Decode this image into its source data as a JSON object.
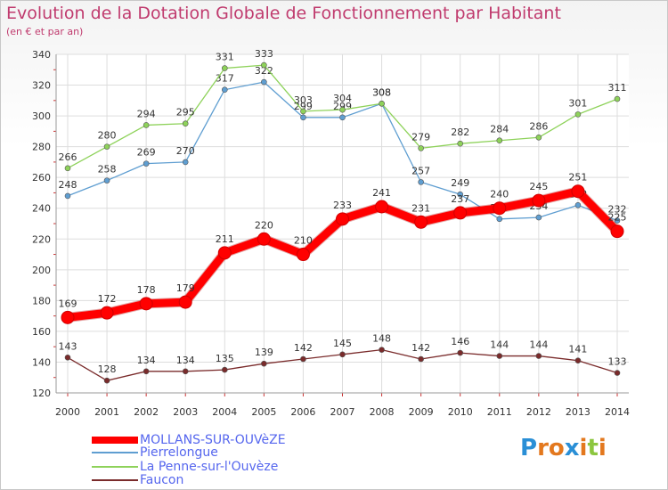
{
  "chart_data": {
    "type": "line",
    "title": "Evolution de la Dotation Globale de Fonctionnement par Habitant",
    "subtitle": "(en € et par an)",
    "x": [
      "2000",
      "2001",
      "2002",
      "2003",
      "2004",
      "2005",
      "2006",
      "2007",
      "2008",
      "2009",
      "2010",
      "2011",
      "2012",
      "2013",
      "2014"
    ],
    "ylim": [
      120,
      340
    ],
    "yticks": [
      120,
      140,
      160,
      180,
      200,
      220,
      240,
      260,
      280,
      300,
      320,
      340
    ],
    "grid": true,
    "legend_position": "bottom-left",
    "series": [
      {
        "name": "MOLLANS-SUR-OUVèZE",
        "color": "#ff0000",
        "values": [
          169,
          172,
          178,
          179,
          211,
          220,
          210,
          233,
          241,
          231,
          237,
          240,
          245,
          251,
          225
        ]
      },
      {
        "name": "Pierrelongue",
        "color": "#5f9ed1",
        "values": [
          248,
          258,
          269,
          270,
          317,
          322,
          299,
          299,
          308,
          257,
          249,
          233,
          234,
          242,
          232
        ]
      },
      {
        "name": "La Penne-sur-l'Ouvèze",
        "color": "#8ed25a",
        "values": [
          266,
          280,
          294,
          295,
          331,
          333,
          303,
          304,
          308,
          279,
          282,
          284,
          286,
          301,
          311
        ]
      },
      {
        "name": "Faucon",
        "color": "#7a2b2b",
        "values": [
          143,
          128,
          134,
          134,
          135,
          139,
          142,
          145,
          148,
          142,
          146,
          144,
          144,
          141,
          133
        ]
      }
    ]
  },
  "logo": {
    "text": "Proxiti",
    "letters": [
      "P",
      "r",
      "o",
      "x",
      "i",
      "t",
      "i"
    ],
    "colors": [
      "#2a8fd6",
      "#e3781e",
      "#e3781e",
      "#2a8fd6",
      "#e3781e",
      "#8cc63f",
      "#e3781e"
    ]
  }
}
